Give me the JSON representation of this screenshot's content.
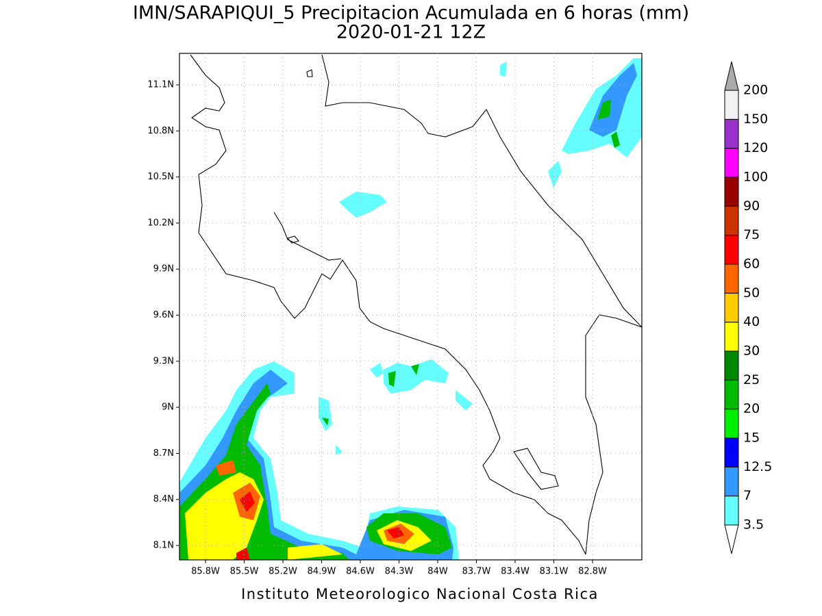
{
  "title": [
    "IMN/SARAPIQUI_5 Precipitacion Acumulada en 6 horas (mm)",
    "2020-01-21 12Z"
  ],
  "map": {
    "lat_ticks": [
      "11.1N",
      "10.8N",
      "10.5N",
      "10.2N",
      "9.9N",
      "9.6N",
      "9.3N",
      "9N",
      "8.7N",
      "8.4N",
      "8.1N"
    ],
    "lon_ticks": [
      "85.8W",
      "85.5W",
      "85.2W",
      "84.9W",
      "84.6W",
      "84.3W",
      "84W",
      "83.7W",
      "83.4W",
      "83.1W",
      "82.8W"
    ],
    "grid": true
  },
  "colorbar": {
    "levels": [
      3.5,
      7,
      12.5,
      15,
      20,
      25,
      30,
      40,
      50,
      60,
      75,
      90,
      100,
      120,
      150,
      200
    ],
    "colors": [
      "#66ffff",
      "#3399ff",
      "#0000ff",
      "#00ee00",
      "#00bb00",
      "#008800",
      "#ffff00",
      "#ffcc00",
      "#ff6600",
      "#ff0000",
      "#cc3300",
      "#990000",
      "#ff00ff",
      "#9933cc",
      "#f2f2f2"
    ],
    "under_color": "#ffffff",
    "over_color": "#aaaaaa"
  },
  "footer": "Instituto Meteorologico Nacional Costa Rica"
}
